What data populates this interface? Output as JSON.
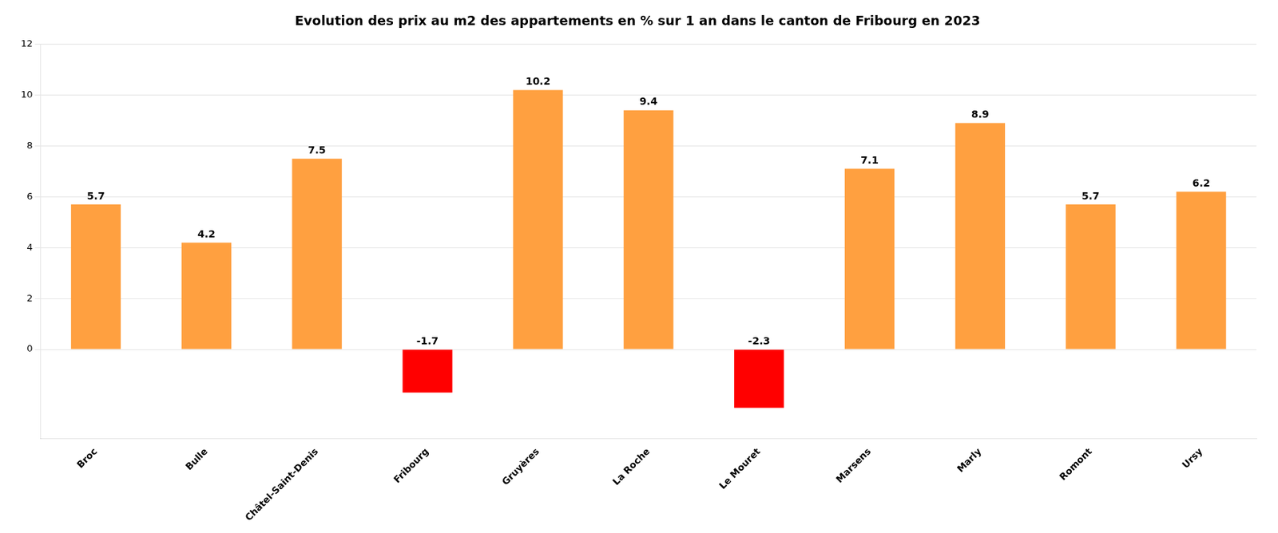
{
  "chart_data": {
    "type": "bar",
    "title": "Evolution des prix au m2 des appartements en % sur 1 an dans le canton de Fribourg en 2023",
    "categories": [
      "Broc",
      "Bulle",
      "Châtel-Saint-Denis",
      "Fribourg",
      "Gruyères",
      "La Roche",
      "Le Mouret",
      "Marsens",
      "Marly",
      "Romont",
      "Ursy"
    ],
    "values": [
      5.7,
      4.2,
      7.5,
      -1.7,
      10.2,
      9.4,
      -2.3,
      7.1,
      8.9,
      5.7,
      6.2
    ],
    "colors": [
      "#FFA040",
      "#FFA040",
      "#FFA040",
      "#FF0000",
      "#FFA040",
      "#FFA040",
      "#FF0000",
      "#FFA040",
      "#FFA040",
      "#FFA040",
      "#FFA040"
    ],
    "ylim": [
      -3.5,
      12
    ],
    "yticks": [
      0,
      2,
      4,
      6,
      8,
      10,
      12
    ],
    "grid": true,
    "data_labels": true
  }
}
